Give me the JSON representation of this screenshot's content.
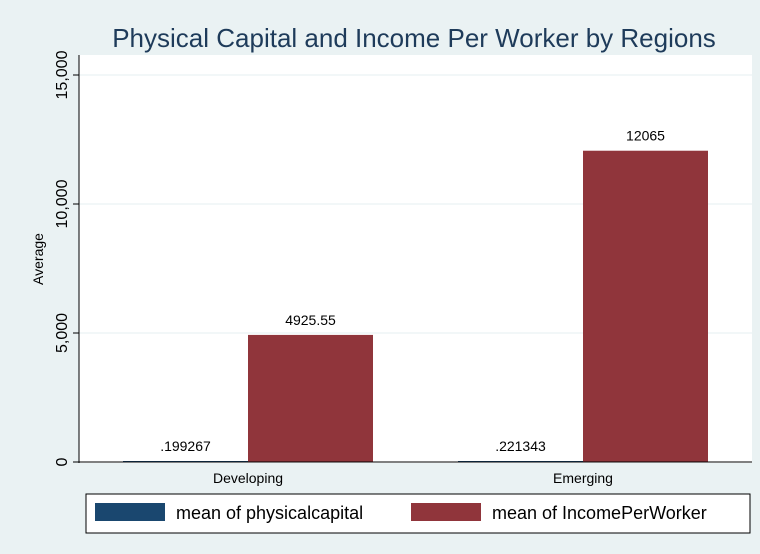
{
  "chart_data": {
    "type": "bar",
    "title": "Physical Capital and Income Per Worker by Regions",
    "xlabel": "",
    "ylabel": "Average",
    "categories": [
      "Developing",
      "Emerging"
    ],
    "series": [
      {
        "name": "mean of physicalcapital",
        "values": [
          0.199267,
          0.221343
        ],
        "labels": [
          ".199267",
          ".221343"
        ],
        "color": "#1a476f"
      },
      {
        "name": "mean of IncomePerWorker",
        "values": [
          4925.55,
          12065
        ],
        "labels": [
          "4925.55",
          "12065"
        ],
        "color": "#90353b"
      }
    ],
    "ylim": [
      0,
      15000
    ],
    "yticks": [
      0,
      5000,
      10000,
      15000
    ],
    "ytick_labels": [
      "0",
      "5,000",
      "10,000",
      "15,000"
    ],
    "grid": true,
    "legend_position": "bottom",
    "colors": {
      "background": "#eaf2f3",
      "plot_background": "#ffffff",
      "grid": "#eaf2f3",
      "title": "#1e3b5a"
    }
  }
}
